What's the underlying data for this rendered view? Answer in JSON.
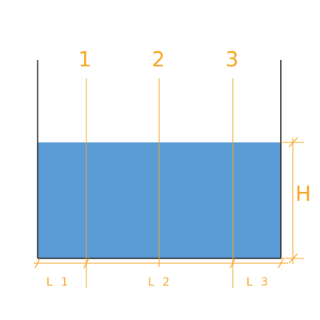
{
  "colors": {
    "accent": "#f5a623",
    "water": "#5b9bd5",
    "wall": "#222222",
    "background": "#ffffff"
  },
  "lines": [
    {
      "label": "1"
    },
    {
      "label": "2"
    },
    {
      "label": "3"
    }
  ],
  "segments": [
    {
      "label": "L 1"
    },
    {
      "label": "L 2"
    },
    {
      "label": "L 3"
    }
  ],
  "height_label": "H"
}
